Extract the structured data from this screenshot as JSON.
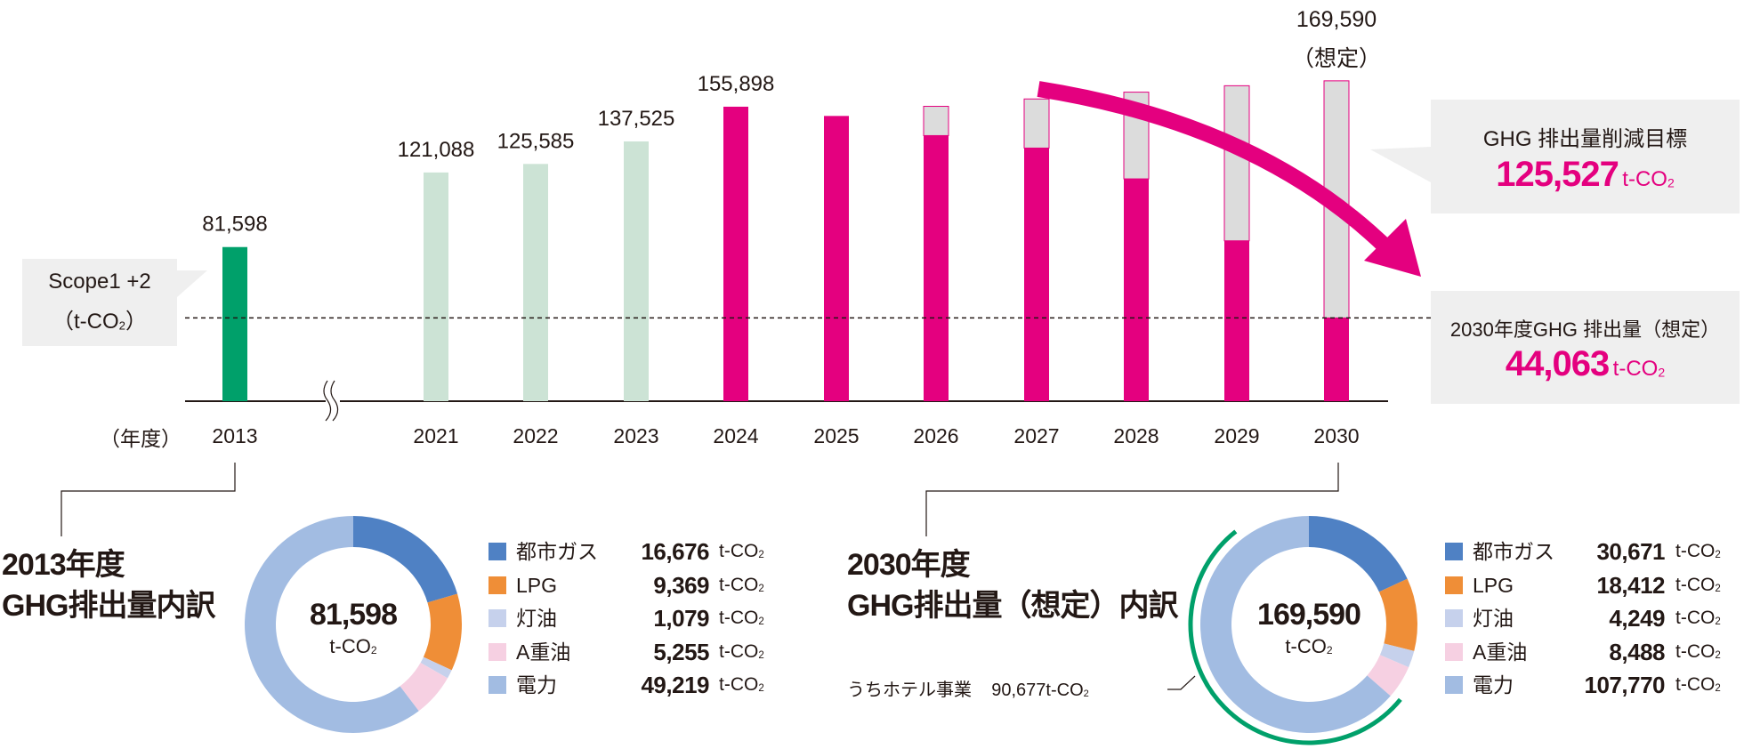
{
  "colors": {
    "bar_2013": "#00a06a",
    "bar_past": "#cce3d5",
    "bar_actual": "#e4007f",
    "bar_reduction": "#dcdcdc",
    "target": "#e4007f",
    "box": "#efefef",
    "hotel_arc": "#00a06a"
  },
  "scope_label": {
    "line1": "Scope1 +2",
    "line2": "（t-CO",
    "sub": "2",
    "line2_end": "）"
  },
  "year_unit_label": "（年度）",
  "top_2030": {
    "value": "169,590",
    "note": "（想定）"
  },
  "target_box": {
    "title": "GHG 排出量削減目標",
    "value": "125,527",
    "unit": "t-CO",
    "unit_sub": "2"
  },
  "forecast_box": {
    "title": "2030年度GHG 排出量（想定）",
    "value": "44,063",
    "unit": "t-CO",
    "unit_sub": "2"
  },
  "chart_data": [
    {
      "type": "bar",
      "categories": [
        "2013",
        "2021",
        "2022",
        "2023",
        "2024",
        "2025",
        "2026",
        "2027",
        "2028",
        "2029",
        "2030"
      ],
      "series": [
        {
          "values": [
            81598,
            121088,
            125585,
            137525,
            155898,
            151000,
            140600,
            134000,
            117700,
            84900,
            44063
          ]
        },
        {
          "values": [
            0,
            0,
            0,
            0,
            0,
            0,
            15500,
            26000,
            45900,
            82100,
            125527
          ]
        }
      ],
      "data_labels": [
        "81,598",
        "121,088",
        "125,585",
        "137,525",
        "155,898",
        "",
        "",
        "",
        "",
        "",
        "169,590"
      ],
      "axis_break_between": [
        "2013",
        "2021"
      ],
      "reference_line": 44063,
      "xlabel": "（年度）",
      "ylim": [
        0,
        170000
      ],
      "grid": false
    },
    {
      "type": "pie",
      "title": "2013年度\nGHG排出量内訳",
      "title_lines": [
        "2013年度",
        "GHG排出量内訳"
      ],
      "total": "81,598",
      "unit": "t-CO",
      "unit_sub": "2",
      "slices": [
        {
          "label": "都市ガス",
          "value": 16676,
          "display": "16,676",
          "color": "#4f81c4"
        },
        {
          "label": "LPG",
          "value": 9369,
          "display": "9,369",
          "color": "#ef8e37"
        },
        {
          "label": "灯油",
          "value": 1079,
          "display": "1,079",
          "color": "#c6d1ec"
        },
        {
          "label": "A重油",
          "value": 5255,
          "display": "5,255",
          "color": "#f6d0e2"
        },
        {
          "label": "電力",
          "value": 49219,
          "display": "49,219",
          "color": "#a2bce2"
        }
      ]
    },
    {
      "type": "pie",
      "title_lines": [
        "2030年度",
        "GHG排出量（想定）内訳"
      ],
      "total": "169,590",
      "unit": "t-CO",
      "unit_sub": "2",
      "slices": [
        {
          "label": "都市ガス",
          "value": 30671,
          "display": "30,671",
          "color": "#4f81c4"
        },
        {
          "label": "LPG",
          "value": 18412,
          "display": "18,412",
          "color": "#ef8e37"
        },
        {
          "label": "灯油",
          "value": 4249,
          "display": "4,249",
          "color": "#c6d1ec"
        },
        {
          "label": "A重油",
          "value": 8488,
          "display": "8,488",
          "color": "#f6d0e2"
        },
        {
          "label": "電力",
          "value": 107770,
          "display": "107,770",
          "color": "#a2bce2"
        }
      ],
      "hotel": {
        "label": "うちホテル事業",
        "value": 90677,
        "display": "90,677t-CO",
        "sub": "2"
      }
    }
  ]
}
